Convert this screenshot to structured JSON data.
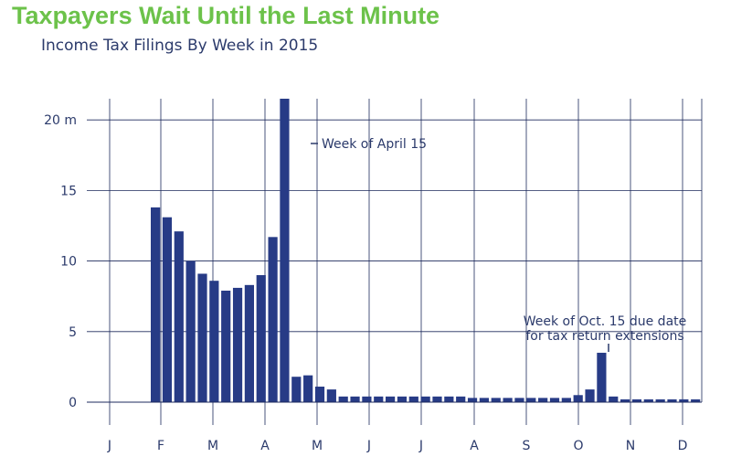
{
  "title": "Taxpayers Wait Until the Last Minute",
  "subtitle": "Income Tax Filings By Week in 2015",
  "colors": {
    "bar": "#273b86",
    "title": "#6cc24a",
    "text": "#2b3a6b",
    "grid": "#1d2a5c"
  },
  "chart_data": {
    "type": "bar",
    "x_tick_labels": [
      "J",
      "F",
      "M",
      "A",
      "M",
      "J",
      "J",
      "A",
      "S",
      "O",
      "N",
      "D"
    ],
    "y_ticks": [
      0,
      5,
      10,
      15,
      20
    ],
    "y_tick_labels": [
      "0",
      "5",
      "10",
      "15",
      "20 m"
    ],
    "ylim": [
      0,
      21.5
    ],
    "grid": true,
    "values": [
      13.8,
      13.1,
      12.1,
      10.0,
      9.1,
      8.6,
      7.9,
      8.1,
      8.3,
      9.0,
      11.7,
      21.5,
      1.8,
      1.9,
      1.1,
      0.9,
      0.4,
      0.4,
      0.4,
      0.4,
      0.4,
      0.4,
      0.4,
      0.4,
      0.4,
      0.4,
      0.4,
      0.3,
      0.3,
      0.3,
      0.3,
      0.3,
      0.3,
      0.3,
      0.3,
      0.3,
      0.5,
      0.9,
      3.5,
      0.4,
      0.2,
      0.2,
      0.2,
      0.2,
      0.2,
      0.2,
      0.2
    ],
    "annotations": [
      {
        "text": "Week of April 15"
      },
      {
        "lines": [
          "Week of Oct. 15 due date",
          "for tax return extensions"
        ]
      }
    ]
  }
}
